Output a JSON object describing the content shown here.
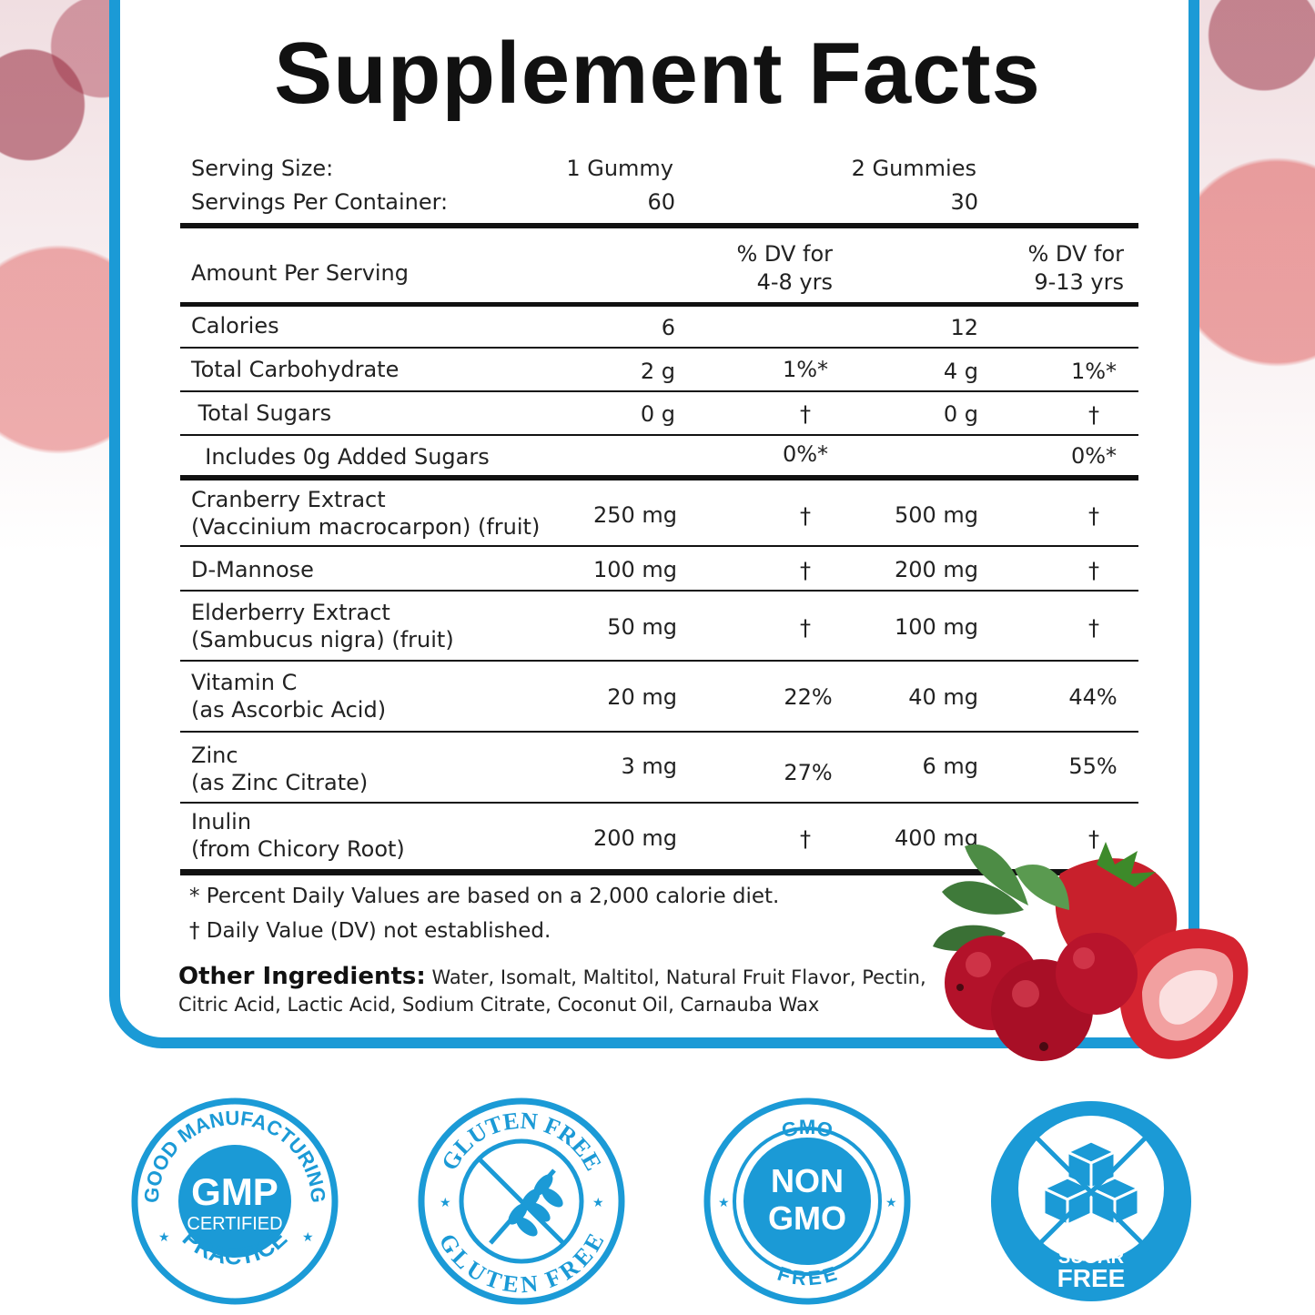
{
  "title": "Supplement Facts",
  "serving": {
    "size_label": "Serving Size:",
    "size_a": "1 Gummy",
    "size_b": "2 Gummies",
    "per_container_label": "Servings Per Container:",
    "per_container_a": "60",
    "per_container_b": "30"
  },
  "header": {
    "amount_label": "Amount Per Serving",
    "dv_a_line1": "% DV for",
    "dv_a_line2": "4-8 yrs",
    "dv_b_line1": "% DV for",
    "dv_b_line2": "9-13 yrs"
  },
  "rows": [
    {
      "name1": "Calories",
      "name2": "",
      "a": "6",
      "dva": "",
      "b": "12",
      "dvb": ""
    },
    {
      "name1": "Total Carbohydrate",
      "name2": "",
      "a": "2 g",
      "dva": "1%*",
      "b": "4 g",
      "dvb": "1%*"
    },
    {
      "name1": " Total Sugars",
      "name2": "",
      "a": "0 g",
      "dva": "†",
      "b": "0 g",
      "dvb": "†"
    },
    {
      "name1": "  Includes 0g Added Sugars",
      "name2": "",
      "a": "",
      "dva": "0%*",
      "b": "",
      "dvb": "0%*"
    },
    {
      "name1": "Cranberry Extract",
      "name2": "(Vaccinium macrocarpon) (fruit)",
      "a": "250 mg",
      "dva": "†",
      "b": "500 mg",
      "dvb": "†"
    },
    {
      "name1": "D-Mannose",
      "name2": "",
      "a": "100 mg",
      "dva": "†",
      "b": "200 mg",
      "dvb": "†"
    },
    {
      "name1": "Elderberry Extract",
      "name2": "(Sambucus nigra) (fruit)",
      "a": "50 mg",
      "dva": "†",
      "b": "100 mg",
      "dvb": "†"
    },
    {
      "name1": "Vitamin C",
      "name2": "(as Ascorbic Acid)",
      "a": "20 mg",
      "dva": "22%",
      "b": "40 mg",
      "dvb": "44%"
    },
    {
      "name1": "Zinc",
      "name2": "(as Zinc Citrate)",
      "a": "3 mg",
      "dva": "27%",
      "b": "6 mg",
      "dvb": "55%"
    },
    {
      "name1": "Inulin",
      "name2": "(from Chicory Root)",
      "a": "200 mg",
      "dva": "†",
      "b": "400 mg",
      "dvb": "†"
    }
  ],
  "footnotes": {
    "percent": "* Percent Daily Values are based on a 2,000 calorie diet.",
    "dagger": "† Daily Value (DV) not established."
  },
  "other_ingredients": {
    "label": "Other Ingredients:",
    "text": "Water, Isomalt, Maltitol, Natural Fruit Flavor, Pectin, Citric Acid, Lactic Acid, Sodium Citrate, Coconut Oil, Carnauba Wax"
  },
  "badges": {
    "gmp": {
      "top": "GOOD MANUFACTURING",
      "center": "GMP",
      "sub": "CERTIFIED",
      "bottom": "PRACTICE"
    },
    "gluten": {
      "top": "GLUTEN FREE",
      "bottom": "GLUTEN FREE"
    },
    "gmo": {
      "top": "GMO",
      "line1": "NON",
      "line2": "GMO",
      "bottom": "FREE"
    },
    "sugar": {
      "line1": "SUGAR",
      "line2": "FREE"
    }
  },
  "colors": {
    "accent": "#1b9ad6",
    "text": "#1a1a1a",
    "rule": "#111111"
  },
  "icons": [
    "wheat-icon",
    "sugar-cubes-icon",
    "star-icon",
    "cranberry-strawberry-illustration"
  ]
}
